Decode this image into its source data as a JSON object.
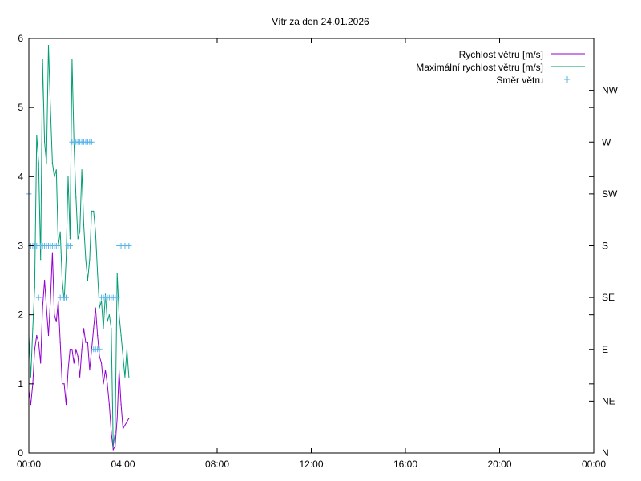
{
  "chart_data": {
    "type": "line",
    "title": "Vítr za den 24.01.2026",
    "x_ticks": [
      "00:00",
      "04:00",
      "08:00",
      "12:00",
      "16:00",
      "20:00",
      "00:00"
    ],
    "xlim": [
      "00:00",
      "24:00"
    ],
    "y_ticks": [
      "0",
      "1",
      "2",
      "3",
      "4",
      "5",
      "6"
    ],
    "ylim": [
      0,
      6
    ],
    "y2_ticks": [
      "N",
      "NE",
      "E",
      "SE",
      "S",
      "SW",
      "W",
      "NW"
    ],
    "legend_position": "top-right",
    "grid": false,
    "series": [
      {
        "name": "Rychlost větru [m/s]",
        "color": "#9400d3",
        "style": "line",
        "x": [
          "00:00",
          "00:05",
          "00:10",
          "00:15",
          "00:20",
          "00:25",
          "00:30",
          "00:35",
          "00:40",
          "00:45",
          "00:50",
          "00:55",
          "01:00",
          "01:05",
          "01:10",
          "01:15",
          "01:20",
          "01:25",
          "01:30",
          "01:35",
          "01:40",
          "01:45",
          "01:50",
          "01:55",
          "02:00",
          "02:05",
          "02:10",
          "02:15",
          "02:20",
          "02:25",
          "02:30",
          "02:35",
          "02:40",
          "02:45",
          "02:50",
          "02:55",
          "03:00",
          "03:05",
          "03:10",
          "03:15",
          "03:20",
          "03:25",
          "03:30",
          "03:35",
          "03:40",
          "03:45",
          "03:50",
          "03:55",
          "04:00",
          "04:05",
          "04:10",
          "04:15"
        ],
        "values": [
          0.9,
          0.7,
          1.0,
          1.5,
          1.7,
          1.6,
          1.3,
          2.1,
          2.5,
          2.1,
          1.7,
          2.2,
          2.9,
          2.0,
          1.9,
          2.2,
          1.6,
          1.0,
          1.0,
          0.7,
          1.2,
          1.5,
          1.5,
          1.3,
          1.5,
          1.4,
          1.1,
          1.5,
          1.8,
          1.6,
          1.6,
          1.2,
          1.5,
          1.8,
          2.1,
          1.7,
          1.4,
          1.3,
          1.0,
          1.2,
          1.0,
          0.7,
          0.3,
          0.05,
          0.1,
          0.5,
          1.2,
          0.7,
          0.35,
          0.4,
          0.45,
          0.5
        ]
      },
      {
        "name": "Maximální rychlost větru [m/s]",
        "color": "#009e73",
        "style": "line",
        "x": [
          "00:00",
          "00:05",
          "00:10",
          "00:15",
          "00:20",
          "00:25",
          "00:30",
          "00:35",
          "00:40",
          "00:45",
          "00:50",
          "00:55",
          "01:00",
          "01:05",
          "01:10",
          "01:15",
          "01:20",
          "01:25",
          "01:30",
          "01:35",
          "01:40",
          "01:45",
          "01:50",
          "01:55",
          "02:00",
          "02:05",
          "02:10",
          "02:15",
          "02:20",
          "02:25",
          "02:30",
          "02:35",
          "02:40",
          "02:45",
          "02:50",
          "02:55",
          "03:00",
          "03:05",
          "03:10",
          "03:15",
          "03:20",
          "03:25",
          "03:30",
          "03:35",
          "03:40",
          "03:45",
          "03:50",
          "03:55",
          "04:00",
          "04:05",
          "04:10",
          "04:15"
        ],
        "values": [
          1.7,
          1.1,
          1.8,
          2.4,
          4.6,
          4.2,
          2.8,
          5.7,
          4.5,
          4.2,
          5.9,
          5.0,
          4.2,
          4.0,
          4.1,
          3.0,
          3.2,
          2.5,
          2.2,
          2.8,
          4.0,
          3.1,
          5.7,
          4.5,
          3.7,
          3.1,
          3.2,
          4.1,
          3.3,
          2.8,
          2.5,
          2.8,
          3.5,
          3.5,
          3.2,
          2.6,
          2.1,
          2.2,
          1.8,
          2.3,
          1.9,
          2.0,
          1.8,
          0.1,
          0.3,
          2.6,
          2.0,
          1.7,
          1.4,
          1.1,
          1.5,
          1.1
        ]
      },
      {
        "name": "Směr větru",
        "color": "#56b4e9",
        "style": "points",
        "marker": "+",
        "x": [
          "00:00",
          "00:05",
          "00:10",
          "00:15",
          "00:20",
          "00:25",
          "00:30",
          "00:35",
          "00:40",
          "00:45",
          "00:50",
          "00:55",
          "01:00",
          "01:05",
          "01:10",
          "01:15",
          "01:20",
          "01:25",
          "01:30",
          "01:35",
          "01:40",
          "01:45",
          "01:50",
          "01:55",
          "02:00",
          "02:05",
          "02:10",
          "02:15",
          "02:20",
          "02:25",
          "02:30",
          "02:35",
          "02:40",
          "02:45",
          "02:50",
          "02:55",
          "03:00",
          "03:05",
          "03:10",
          "03:15",
          "03:20",
          "03:25",
          "03:30",
          "03:35",
          "03:40",
          "03:45",
          "03:50",
          "03:55",
          "04:00",
          "04:05",
          "04:10",
          "04:15"
        ],
        "values": [
          "SW",
          "S",
          "S",
          "S",
          "S",
          "SE",
          "S",
          "S",
          "S",
          "S",
          "S",
          "S",
          "S",
          "S",
          "S",
          "S",
          "SE",
          "SE",
          "SE",
          "SE",
          "S",
          "S",
          "W",
          "W",
          "W",
          "W",
          "W",
          "W",
          "W",
          "W",
          "W",
          "W",
          "W",
          "E",
          "E",
          "E",
          "E",
          "SE",
          "SE",
          "SE",
          "SE",
          "SE",
          "SE",
          "SE",
          "SE",
          "SE",
          "S",
          "S",
          "S",
          "S",
          "S",
          "S"
        ]
      }
    ]
  }
}
